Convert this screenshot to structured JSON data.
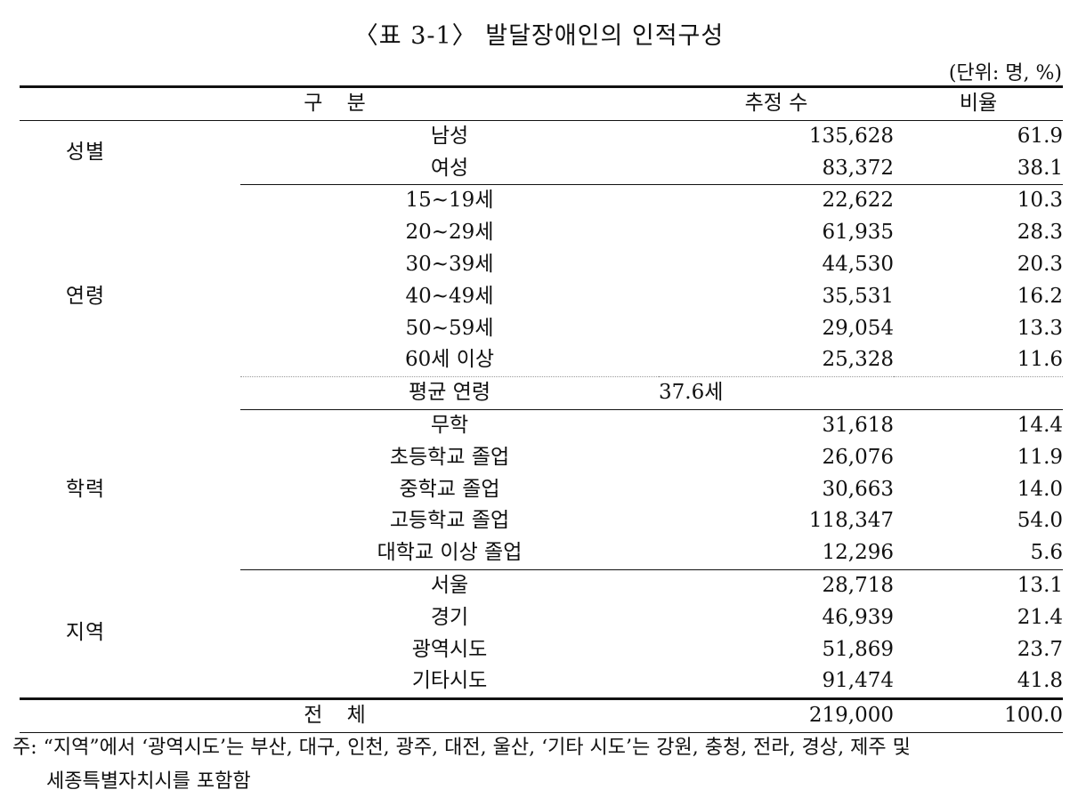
{
  "title": "〈표 3-1〉 발달장애인의 인적구성",
  "unit": "(단위: 명, %)",
  "headers": {
    "category": "구 분",
    "count": "추정 수",
    "ratio": "비율"
  },
  "sections": [
    {
      "group": "성별",
      "rows": [
        {
          "label": "남성",
          "count": "135,628",
          "ratio": "61.9"
        },
        {
          "label": "여성",
          "count": "83,372",
          "ratio": "38.1"
        }
      ]
    },
    {
      "group": "연령",
      "rows": [
        {
          "label": "15~19세",
          "count": "22,622",
          "ratio": "10.3"
        },
        {
          "label": "20~29세",
          "count": "61,935",
          "ratio": "28.3"
        },
        {
          "label": "30~39세",
          "count": "44,530",
          "ratio": "20.3"
        },
        {
          "label": "40~49세",
          "count": "35,531",
          "ratio": "16.2"
        },
        {
          "label": "50~59세",
          "count": "29,054",
          "ratio": "13.3"
        },
        {
          "label": "60세 이상",
          "count": "25,328",
          "ratio": "11.6"
        }
      ],
      "average": {
        "label": "평균 연령",
        "value": "37.6세"
      }
    },
    {
      "group": "학력",
      "rows": [
        {
          "label": "무학",
          "count": "31,618",
          "ratio": "14.4"
        },
        {
          "label": "초등학교 졸업",
          "count": "26,076",
          "ratio": "11.9"
        },
        {
          "label": "중학교 졸업",
          "count": "30,663",
          "ratio": "14.0"
        },
        {
          "label": "고등학교 졸업",
          "count": "118,347",
          "ratio": "54.0"
        },
        {
          "label": "대학교 이상 졸업",
          "count": "12,296",
          "ratio": "5.6"
        }
      ]
    },
    {
      "group": "지역",
      "rows": [
        {
          "label": "서울",
          "count": "28,718",
          "ratio": "13.1"
        },
        {
          "label": "경기",
          "count": "46,939",
          "ratio": "21.4"
        },
        {
          "label": "광역시도",
          "count": "51,869",
          "ratio": "23.7"
        },
        {
          "label": "기타시도",
          "count": "91,474",
          "ratio": "41.8"
        }
      ]
    }
  ],
  "total": {
    "label": "전 체",
    "count": "219,000",
    "ratio": "100.0"
  },
  "note": {
    "line1": "주: “지역”에서 ‘광역시도’는 부산, 대구, 인천, 광주, 대전, 울산, ‘기타 시도’는 강원, 충청, 전라, 경상, 제주 및",
    "line2": "세종특별자치시를 포함함"
  }
}
